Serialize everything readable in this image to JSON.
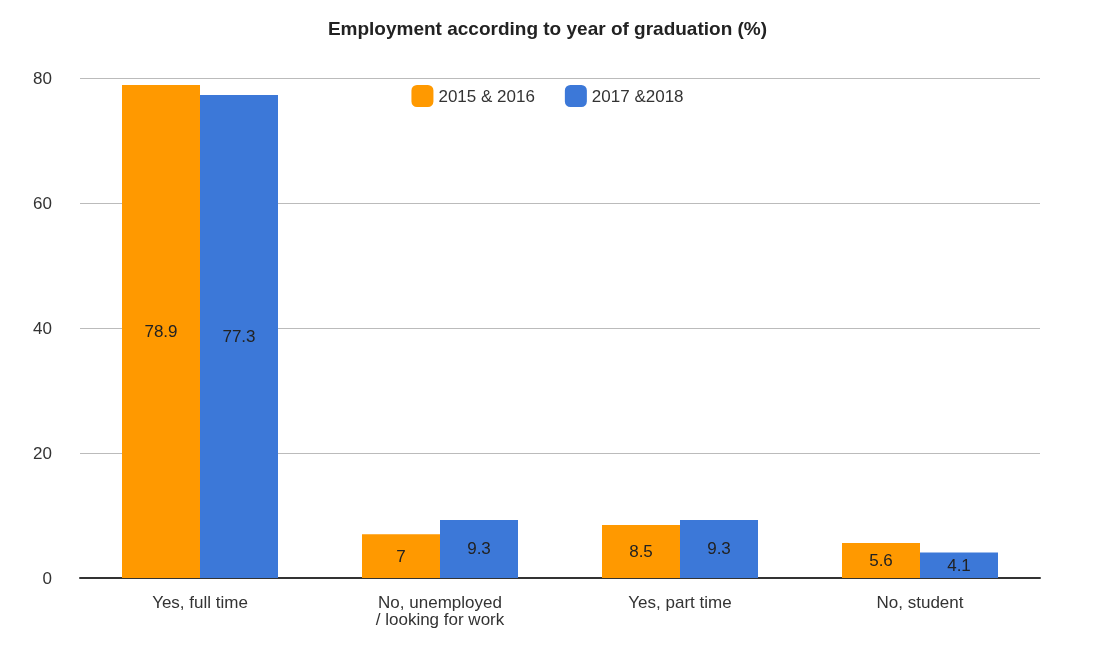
{
  "chart_data": {
    "type": "bar",
    "title": "Employment according to year of graduation (%)",
    "categories": [
      "Yes, full time",
      "No, unemployed / looking for work",
      "Yes, part time",
      "No, student"
    ],
    "series": [
      {
        "name": "2015 & 2016",
        "color": "#ff9900",
        "values": [
          78.9,
          7,
          8.5,
          5.6
        ]
      },
      {
        "name": "2017 &2018",
        "color": "#3c78d8",
        "values": [
          77.3,
          9.3,
          9.3,
          4.1
        ]
      }
    ],
    "ylim": [
      0,
      80
    ],
    "yticks": [
      0,
      20,
      40,
      60,
      80
    ],
    "grid": "y",
    "legend": "top",
    "data_labels": true
  }
}
